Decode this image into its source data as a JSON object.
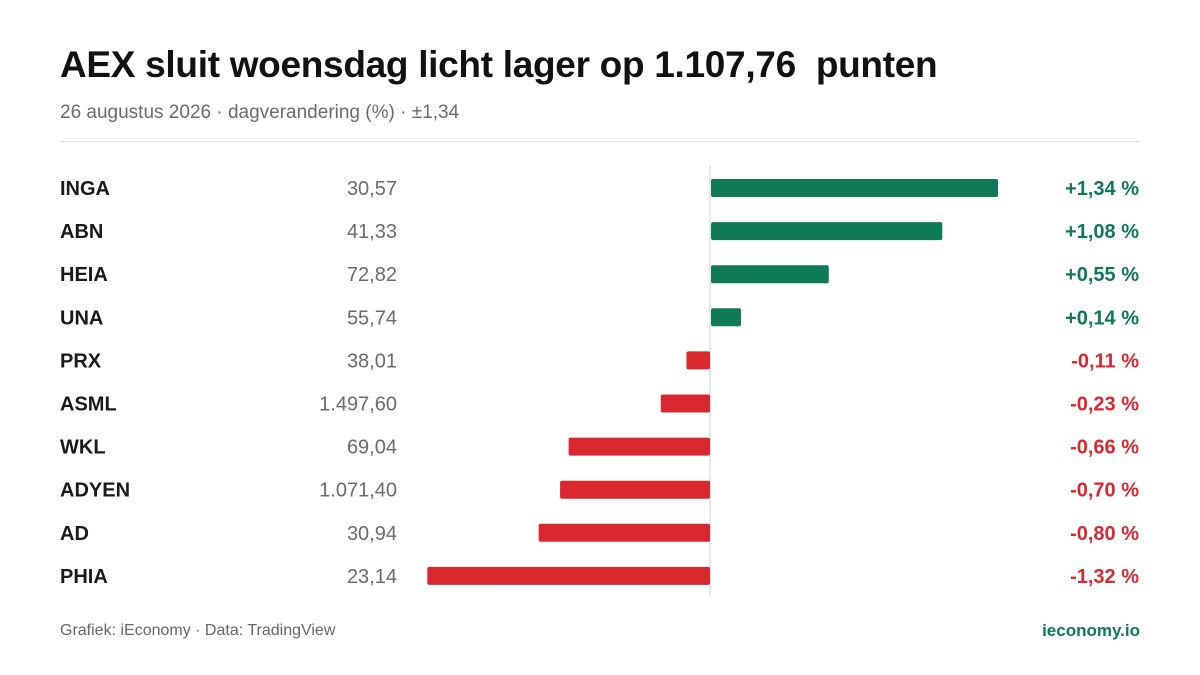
{
  "title": "AEX sluit woensdag licht lager op 1.107,76  punten",
  "subtitle": "26 augustus 2026 · dagverandering (%) · ±1,34",
  "footer": {
    "source": "Grafiek: iEconomy · Data: TradingView",
    "brand": "ieconomy.io"
  },
  "colors": {
    "positive": "#0f7a55",
    "negative": "#d9282f",
    "ticker": "#1a1a1a",
    "price": "#6b6b6b",
    "zero_line": "#d0d0d0"
  },
  "chart_data": {
    "type": "bar",
    "orientation": "horizontal",
    "unit": "%",
    "xlim": [
      -1.34,
      1.34
    ],
    "categories": [
      "INGA",
      "ABN",
      "HEIA",
      "UNA",
      "PRX",
      "ASML",
      "WKL",
      "ADYEN",
      "AD",
      "PHIA"
    ],
    "prices": [
      "30,57",
      "41,33",
      "72,82",
      "55,74",
      "38,01",
      "1.497,60",
      "69,04",
      "1.071,40",
      "30,94",
      "23,14"
    ],
    "values": [
      1.34,
      1.08,
      0.55,
      0.14,
      -0.11,
      -0.23,
      -0.66,
      -0.7,
      -0.8,
      -1.32
    ],
    "value_labels": [
      "+1,34 %",
      "+1,08 %",
      "+0,55 %",
      "+0,14 %",
      "-0,11 %",
      "-0,23 %",
      "-0,66 %",
      "-0,70 %",
      "-0,80 %",
      "-1,32 %"
    ]
  }
}
